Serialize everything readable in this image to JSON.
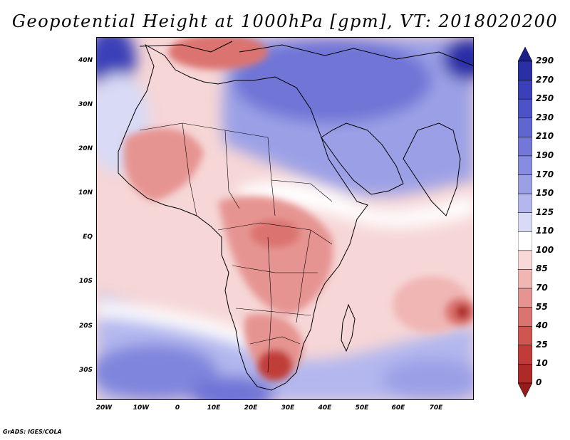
{
  "title": "Geopotential Height at 1000hPa [gpm], VT: 2018020200",
  "credit": "GrADS: IGES/COLA",
  "map": {
    "variable": "Geopotential Height",
    "level": "1000hPa",
    "units": "gpm",
    "valid_time": "2018020200",
    "lat_labels": [
      "40N",
      "30N",
      "20N",
      "10N",
      "EQ",
      "10S",
      "20S",
      "30S"
    ],
    "lon_labels": [
      "20W",
      "10W",
      "0",
      "10E",
      "20E",
      "30E",
      "40E",
      "50E",
      "60E",
      "70E"
    ]
  },
  "colorbar": {
    "levels": [
      "290",
      "270",
      "250",
      "230",
      "210",
      "190",
      "170",
      "150",
      "125",
      "110",
      "100",
      "85",
      "70",
      "55",
      "40",
      "25",
      "10",
      "0"
    ],
    "colors": [
      "#1b1f8a",
      "#2a2fa6",
      "#3b40b8",
      "#4d53c6",
      "#5f66d0",
      "#7378d8",
      "#878ce0",
      "#9ba0e6",
      "#b3b7ee",
      "#d8daf6",
      "#ffffff",
      "#f8d8d8",
      "#f0b6b4",
      "#e69492",
      "#db7370",
      "#cf5550",
      "#c13c38",
      "#ad2a28",
      "#961c1c"
    ]
  }
}
